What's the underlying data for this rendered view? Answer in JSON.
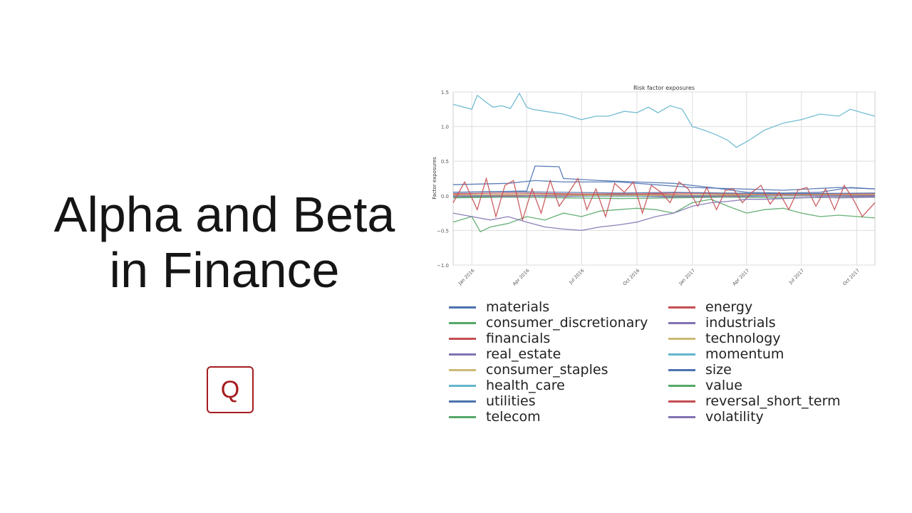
{
  "slide": {
    "title_line1": "Alpha and Beta",
    "title_line2": "in Finance",
    "logo_letter": "Q",
    "logo_color": "#a51c1f"
  },
  "chart_data": {
    "type": "line",
    "title": "Risk factor exposures",
    "ylabel": "Factor exposures",
    "xlabel": "",
    "ylim": [
      -1.0,
      1.5
    ],
    "yticks": [
      "1.5",
      "1.0",
      "0.5",
      "0.0",
      "−0.5",
      "−1.0"
    ],
    "ytick_values": [
      1.5,
      1.0,
      0.5,
      0.0,
      -0.5,
      -1.0
    ],
    "xlim": [
      "2015-12-01",
      "2017-10-31"
    ],
    "xticks": [
      "Jan 2016",
      "Apr 2016",
      "Jul 2016",
      "Oct 2016",
      "Jan 2017",
      "Apr 2017",
      "Jul 2017",
      "Oct 2017"
    ],
    "xtick_dates": [
      "2016-01-01",
      "2016-04-01",
      "2016-07-01",
      "2016-10-01",
      "2017-01-01",
      "2017-04-01",
      "2017-07-01",
      "2017-10-01"
    ],
    "grid": true,
    "legend_position": "below",
    "series": [
      {
        "name": "materials",
        "color": "#4c72b0",
        "x": [
          "2015-12-01",
          "2016-03-01",
          "2016-04-15",
          "2016-06-01",
          "2016-09-01",
          "2017-01-01",
          "2017-06-01",
          "2017-09-01",
          "2017-10-31"
        ],
        "y": [
          0.16,
          0.18,
          0.22,
          0.2,
          0.2,
          0.12,
          0.08,
          0.12,
          0.1
        ]
      },
      {
        "name": "consumer_discretionary",
        "color": "#55a868",
        "x": [
          "2015-12-01",
          "2016-02-01",
          "2016-04-01",
          "2016-07-01",
          "2016-10-01",
          "2017-01-01",
          "2017-04-01",
          "2017-07-01",
          "2017-10-31"
        ],
        "y": [
          -0.02,
          -0.01,
          0.0,
          0.01,
          0.0,
          -0.01,
          0.0,
          0.01,
          0.0
        ]
      },
      {
        "name": "financials",
        "color": "#c44e52",
        "x": [
          "2015-12-01",
          "2016-03-01",
          "2016-06-01",
          "2016-09-01",
          "2016-12-01",
          "2017-03-01",
          "2017-06-01",
          "2017-10-31"
        ],
        "y": [
          0.03,
          0.04,
          0.03,
          0.02,
          0.04,
          0.03,
          0.02,
          0.03
        ]
      },
      {
        "name": "real_estate",
        "color": "#8172b2",
        "x": [
          "2015-12-01",
          "2016-03-01",
          "2016-06-01",
          "2016-09-01",
          "2016-12-01",
          "2017-03-01",
          "2017-06-01",
          "2017-10-31"
        ],
        "y": [
          -0.01,
          0.0,
          -0.01,
          0.0,
          -0.02,
          -0.01,
          0.0,
          -0.01
        ]
      },
      {
        "name": "consumer_staples",
        "color": "#ccb974",
        "x": [
          "2015-12-01",
          "2016-03-01",
          "2016-06-01",
          "2016-09-01",
          "2016-12-01",
          "2017-03-01",
          "2017-06-01",
          "2017-10-31"
        ],
        "y": [
          0.01,
          0.0,
          0.01,
          0.02,
          0.01,
          0.0,
          0.01,
          0.0
        ]
      },
      {
        "name": "health_care",
        "color": "#64b5cd",
        "x": [
          "2015-12-01",
          "2016-03-01",
          "2016-06-01",
          "2016-09-01",
          "2016-12-01",
          "2017-03-01",
          "2017-06-01",
          "2017-10-31"
        ],
        "y": [
          0.0,
          0.01,
          0.0,
          -0.01,
          0.0,
          0.01,
          0.0,
          0.01
        ]
      },
      {
        "name": "utilities",
        "color": "#4c72b0",
        "x": [
          "2015-12-01",
          "2016-03-01",
          "2016-06-01",
          "2016-09-01",
          "2016-12-01",
          "2017-03-01",
          "2017-06-01",
          "2017-10-31"
        ],
        "y": [
          0.05,
          0.06,
          0.05,
          0.04,
          0.05,
          0.04,
          0.03,
          0.04
        ]
      },
      {
        "name": "telecom",
        "color": "#55a868",
        "x": [
          "2015-12-01",
          "2016-03-01",
          "2016-06-01",
          "2016-09-01",
          "2016-12-01",
          "2017-03-01",
          "2017-06-01",
          "2017-10-31"
        ],
        "y": [
          -0.03,
          -0.02,
          -0.03,
          -0.04,
          -0.03,
          -0.02,
          -0.03,
          -0.02
        ]
      },
      {
        "name": "energy",
        "color": "#c44e52",
        "x": [
          "2015-12-01",
          "2016-03-01",
          "2016-06-01",
          "2016-09-01",
          "2016-12-01",
          "2017-03-01",
          "2017-06-01",
          "2017-10-31"
        ],
        "y": [
          0.02,
          0.01,
          0.02,
          0.03,
          0.02,
          0.01,
          0.02,
          0.01
        ]
      },
      {
        "name": "industrials",
        "color": "#8172b2",
        "x": [
          "2015-12-01",
          "2016-03-01",
          "2016-06-01",
          "2016-09-01",
          "2016-12-01",
          "2017-03-01",
          "2017-06-01",
          "2017-10-31"
        ],
        "y": [
          0.0,
          -0.01,
          0.0,
          0.01,
          0.0,
          -0.01,
          0.0,
          0.0
        ]
      },
      {
        "name": "technology",
        "color": "#ccb974",
        "x": [
          "2015-12-01",
          "2016-03-01",
          "2016-06-01",
          "2016-09-01",
          "2016-12-01",
          "2017-03-01",
          "2017-06-01",
          "2017-10-31"
        ],
        "y": [
          0.01,
          0.02,
          0.01,
          0.0,
          0.01,
          0.02,
          0.01,
          0.02
        ]
      },
      {
        "name": "momentum",
        "color": "#64b5cd",
        "x": [
          "2015-12-01",
          "2016-01-01",
          "2016-01-10",
          "2016-01-25",
          "2016-02-05",
          "2016-02-20",
          "2016-03-05",
          "2016-03-20",
          "2016-04-01",
          "2016-04-10",
          "2016-05-01",
          "2016-06-01",
          "2016-07-01",
          "2016-07-25",
          "2016-08-15",
          "2016-09-10",
          "2016-10-01",
          "2016-10-20",
          "2016-11-05",
          "2016-11-25",
          "2016-12-15",
          "2017-01-01",
          "2017-01-20",
          "2017-02-10",
          "2017-03-01",
          "2017-03-15",
          "2017-04-05",
          "2017-05-01",
          "2017-06-01",
          "2017-07-01",
          "2017-08-01",
          "2017-09-01",
          "2017-09-20",
          "2017-10-10",
          "2017-10-31"
        ],
        "y": [
          1.32,
          1.25,
          1.45,
          1.35,
          1.28,
          1.3,
          1.26,
          1.48,
          1.28,
          1.25,
          1.22,
          1.18,
          1.1,
          1.15,
          1.15,
          1.22,
          1.2,
          1.28,
          1.2,
          1.3,
          1.25,
          1.0,
          0.95,
          0.88,
          0.8,
          0.7,
          0.8,
          0.95,
          1.05,
          1.1,
          1.18,
          1.15,
          1.25,
          1.2,
          1.15
        ]
      },
      {
        "name": "size",
        "color": "#4c72b0",
        "x": [
          "2015-12-01",
          "2016-02-01",
          "2016-04-01",
          "2016-04-15",
          "2016-05-25",
          "2016-06-01",
          "2016-08-01",
          "2016-10-01",
          "2016-12-01",
          "2017-02-01",
          "2017-04-01",
          "2017-06-01",
          "2017-08-01",
          "2017-09-20",
          "2017-10-31"
        ],
        "y": [
          0.05,
          0.06,
          0.07,
          0.43,
          0.42,
          0.25,
          0.22,
          0.2,
          0.18,
          0.12,
          0.05,
          0.04,
          0.05,
          0.12,
          0.1
        ]
      },
      {
        "name": "value",
        "color": "#55a868",
        "x": [
          "2015-12-01",
          "2016-01-01",
          "2016-01-15",
          "2016-02-01",
          "2016-03-01",
          "2016-04-01",
          "2016-05-01",
          "2016-06-01",
          "2016-07-01",
          "2016-08-01",
          "2016-09-01",
          "2016-10-01",
          "2016-11-01",
          "2016-12-01",
          "2017-01-01",
          "2017-02-01",
          "2017-03-01",
          "2017-04-01",
          "2017-05-01",
          "2017-06-01",
          "2017-07-01",
          "2017-08-01",
          "2017-09-01",
          "2017-10-31"
        ],
        "y": [
          -0.38,
          -0.3,
          -0.52,
          -0.45,
          -0.4,
          -0.3,
          -0.35,
          -0.25,
          -0.3,
          -0.22,
          -0.2,
          -0.18,
          -0.2,
          -0.25,
          -0.1,
          -0.05,
          -0.15,
          -0.25,
          -0.2,
          -0.18,
          -0.25,
          -0.3,
          -0.28,
          -0.32
        ]
      },
      {
        "name": "reversal_short_term",
        "color": "#c44e52",
        "x": [
          "2015-12-01",
          "2015-12-20",
          "2016-01-10",
          "2016-01-25",
          "2016-02-10",
          "2016-02-25",
          "2016-03-10",
          "2016-03-25",
          "2016-04-10",
          "2016-04-25",
          "2016-05-10",
          "2016-05-25",
          "2016-06-10",
          "2016-06-25",
          "2016-07-10",
          "2016-07-25",
          "2016-08-10",
          "2016-08-25",
          "2016-09-10",
          "2016-09-25",
          "2016-10-10",
          "2016-10-25",
          "2016-11-10",
          "2016-11-25",
          "2016-12-10",
          "2016-12-25",
          "2017-01-10",
          "2017-01-25",
          "2017-02-10",
          "2017-02-25",
          "2017-03-10",
          "2017-03-25",
          "2017-04-10",
          "2017-04-25",
          "2017-05-10",
          "2017-05-25",
          "2017-06-10",
          "2017-06-25",
          "2017-07-10",
          "2017-07-25",
          "2017-08-10",
          "2017-08-25",
          "2017-09-10",
          "2017-09-25",
          "2017-10-10",
          "2017-10-31"
        ],
        "y": [
          -0.1,
          0.2,
          -0.2,
          0.25,
          -0.3,
          0.15,
          0.22,
          -0.35,
          0.1,
          -0.25,
          0.22,
          -0.15,
          0.05,
          0.25,
          -0.2,
          0.1,
          -0.3,
          0.18,
          0.05,
          0.2,
          -0.25,
          0.15,
          0.05,
          -0.1,
          0.2,
          0.1,
          -0.15,
          0.12,
          -0.2,
          0.08,
          0.1,
          -0.1,
          0.05,
          0.15,
          -0.12,
          0.05,
          -0.2,
          0.08,
          0.12,
          -0.15,
          0.1,
          -0.2,
          0.15,
          -0.05,
          -0.3,
          -0.1
        ]
      },
      {
        "name": "volatility",
        "color": "#8172b2",
        "x": [
          "2015-12-01",
          "2016-01-01",
          "2016-02-01",
          "2016-03-01",
          "2016-04-01",
          "2016-05-01",
          "2016-06-01",
          "2016-07-01",
          "2016-08-01",
          "2016-09-01",
          "2016-10-01",
          "2016-11-01",
          "2016-12-01",
          "2017-01-01",
          "2017-02-01",
          "2017-03-01",
          "2017-04-01",
          "2017-05-01",
          "2017-06-01",
          "2017-07-01",
          "2017-08-01",
          "2017-09-01",
          "2017-10-31"
        ],
        "y": [
          -0.25,
          -0.3,
          -0.35,
          -0.3,
          -0.38,
          -0.45,
          -0.48,
          -0.5,
          -0.45,
          -0.42,
          -0.38,
          -0.3,
          -0.25,
          -0.15,
          -0.1,
          -0.08,
          -0.05,
          -0.05,
          -0.04,
          -0.03,
          -0.02,
          -0.03,
          -0.02
        ]
      }
    ]
  }
}
